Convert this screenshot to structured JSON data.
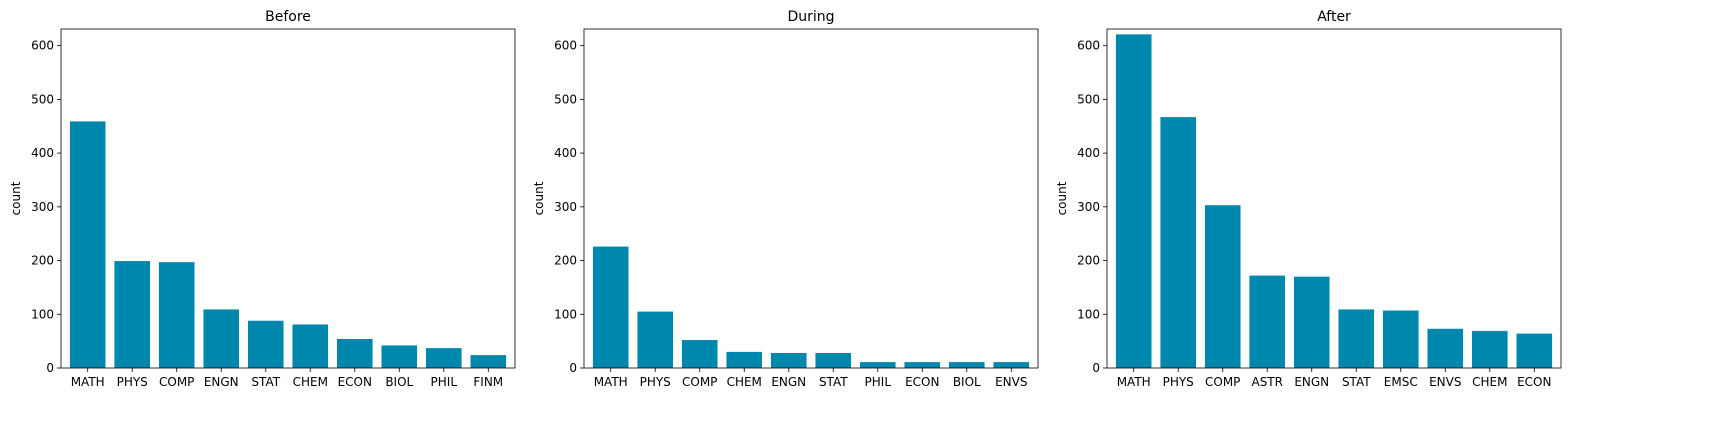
{
  "chart_data": [
    {
      "type": "bar",
      "title": "Before",
      "ylabel": "count",
      "xlabel": "",
      "ylim": [
        0,
        631
      ],
      "yticks": [
        0,
        100,
        200,
        300,
        400,
        500,
        600
      ],
      "categories": [
        "MATH",
        "PHYS",
        "COMP",
        "ENGN",
        "STAT",
        "CHEM",
        "ECON",
        "BIOL",
        "PHIL",
        "FINM"
      ],
      "values": [
        459,
        199,
        197,
        109,
        88,
        81,
        54,
        42,
        37,
        24
      ],
      "color": "#0087ad"
    },
    {
      "type": "bar",
      "title": "During",
      "ylabel": "count",
      "xlabel": "",
      "ylim": [
        0,
        631
      ],
      "yticks": [
        0,
        100,
        200,
        300,
        400,
        500,
        600
      ],
      "categories": [
        "MATH",
        "PHYS",
        "COMP",
        "CHEM",
        "ENGN",
        "STAT",
        "PHIL",
        "ECON",
        "BIOL",
        "ENVS"
      ],
      "values": [
        226,
        105,
        52,
        30,
        28,
        28,
        11,
        11,
        11,
        11
      ],
      "color": "#0087ad"
    },
    {
      "type": "bar",
      "title": "After",
      "ylabel": "count",
      "xlabel": "",
      "ylim": [
        0,
        631
      ],
      "yticks": [
        0,
        100,
        200,
        300,
        400,
        500,
        600
      ],
      "categories": [
        "MATH",
        "PHYS",
        "COMP",
        "ASTR",
        "ENGN",
        "STAT",
        "EMSC",
        "ENVS",
        "CHEM",
        "ECON"
      ],
      "values": [
        621,
        467,
        303,
        172,
        170,
        109,
        107,
        73,
        69,
        64
      ],
      "color": "#0087ad"
    }
  ]
}
